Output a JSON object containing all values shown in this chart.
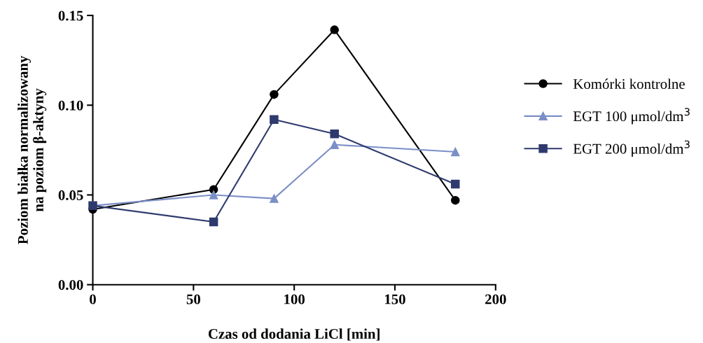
{
  "chart_data": {
    "type": "line",
    "xlabel": "Czas od dodania LiCl [min]",
    "ylabel": "Poziom białka normalizowany\nna poziom β-aktyny",
    "x": [
      0,
      60,
      90,
      120,
      180
    ],
    "series": [
      {
        "name": "Komórki kontrolne",
        "color": "#000000",
        "marker": "circle",
        "values": [
          0.042,
          0.053,
          0.106,
          0.142,
          0.047
        ]
      },
      {
        "name": "EGT 100 μmol/dm$^{3}$",
        "color": "#7b8fc7",
        "marker": "triangle",
        "values": [
          0.044,
          0.05,
          0.048,
          0.078,
          0.074
        ]
      },
      {
        "name": "EGT 200 μmol/dm$^{3}$",
        "color": "#2e3a6e",
        "marker": "square",
        "values": [
          0.044,
          0.035,
          0.092,
          0.084,
          0.056
        ]
      }
    ],
    "xlim": [
      0,
      200
    ],
    "xticks": [
      0,
      50,
      100,
      150,
      200
    ],
    "ylim": [
      0,
      0.15
    ],
    "yticks": [
      {
        "value": 0,
        "label": "0.00"
      },
      {
        "value": 0.05,
        "label": "0.05"
      },
      {
        "value": 0.1,
        "label": "0.10"
      },
      {
        "value": 0.15,
        "label": "0.15"
      }
    ],
    "grid": false,
    "legend": "right",
    "line_style": "solid"
  }
}
